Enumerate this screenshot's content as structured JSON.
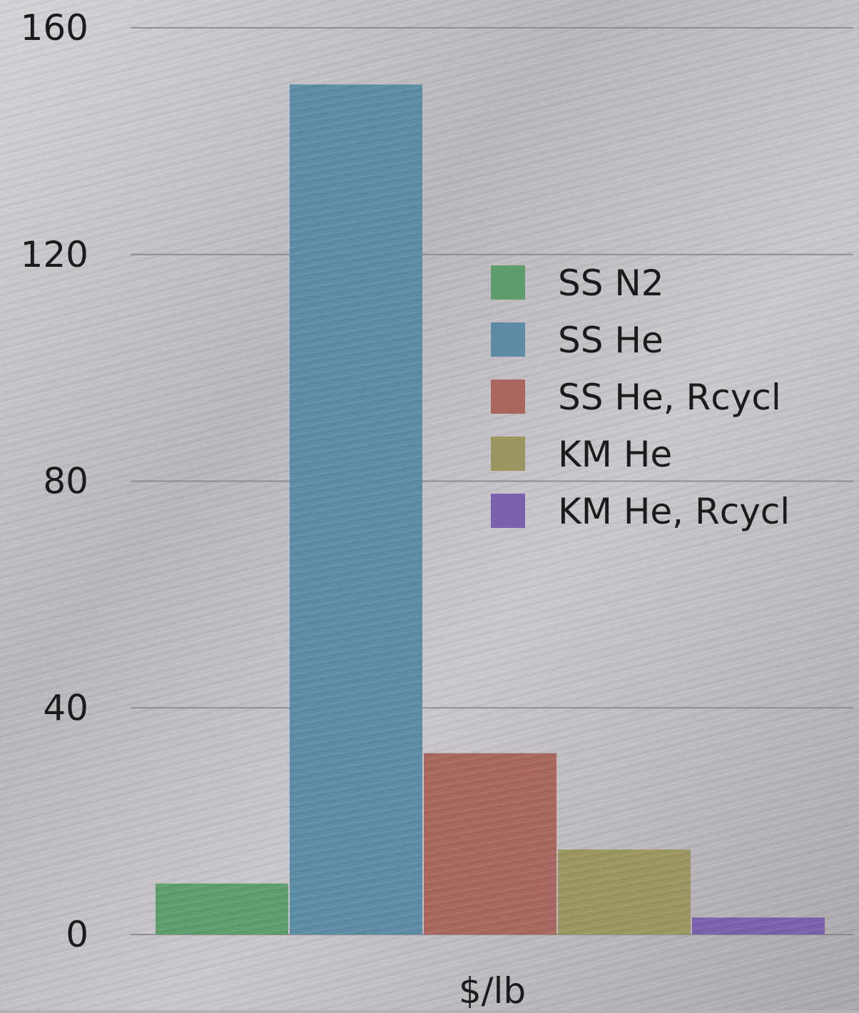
{
  "chart_data": {
    "type": "bar",
    "title": "",
    "xlabel": "$/lb",
    "ylabel": "",
    "categories": [
      "$/lb"
    ],
    "ylim": [
      0,
      160
    ],
    "yticks": [
      0,
      40,
      80,
      120,
      160
    ],
    "grid": true,
    "legend_position": "right",
    "series": [
      {
        "name": "SS N2",
        "values": [
          9
        ],
        "color": "#5f9e6c"
      },
      {
        "name": "SS He",
        "values": [
          150
        ],
        "color": "#5f8ca5"
      },
      {
        "name": "SS He, Rcycl",
        "values": [
          32
        ],
        "color": "#a8685f"
      },
      {
        "name": "KM He",
        "values": [
          15
        ],
        "color": "#9c9662"
      },
      {
        "name": "KM He, Rcycl",
        "values": [
          3
        ],
        "color": "#7a62ae"
      }
    ]
  },
  "colors": {
    "background_light": "#d6d4d9",
    "background_dark": "#9a989c",
    "gridline": "#8a888c",
    "text": "#1b1b1b"
  }
}
